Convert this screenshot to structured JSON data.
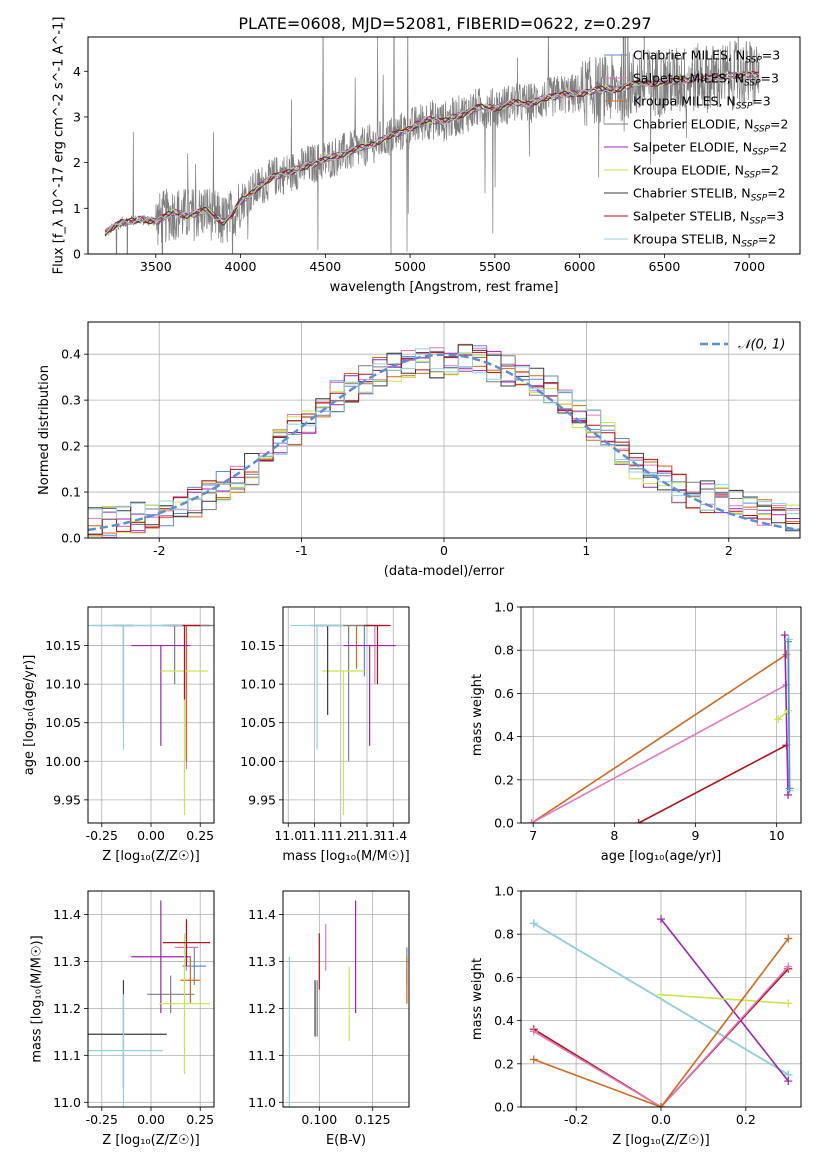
{
  "figure": {
    "title": "PLATE=0608, MJD=52081, FIBERID=0622, z=0.297"
  },
  "colors": {
    "Chabrier MILES": "#5b8fd4",
    "Salpeter MILES": "#e377c2",
    "Kroupa MILES": "#d2691e",
    "Chabrier ELODIE": "#7f7f7f",
    "Salpeter ELODIE": "#9c27b0",
    "Kroupa ELODIE": "#c6e84a",
    "Chabrier STELIB": "#3d3d3d",
    "Salpeter STELIB": "#b0141e",
    "Kroupa STELIB": "#8fd3dc",
    "gauss": "#5b8fd4"
  },
  "chart_data": [
    {
      "id": "spectrum",
      "type": "line",
      "xlabel": "wavelength [Angstrom, rest frame]",
      "ylabel": "Flux [f_λ 10^-17 erg cm^-2 s^-1 A^-1]",
      "xlim": [
        3100,
        7300
      ],
      "ylim": [
        0,
        4.75
      ],
      "xticks": [
        3500,
        4000,
        4500,
        5000,
        5500,
        6000,
        6500,
        7000
      ],
      "yticks": [
        0,
        1,
        2,
        3,
        4
      ],
      "grid": false,
      "legend_position": "top-right",
      "legend": [
        {
          "label": "Chabrier MILES, N",
          "sub": "SSP",
          "suffix": "=3",
          "color_key": "Chabrier MILES"
        },
        {
          "label": "Salpeter MILES, N",
          "sub": "SSP",
          "suffix": "=3",
          "color_key": "Salpeter MILES"
        },
        {
          "label": "Kroupa MILES, N",
          "sub": "SSP",
          "suffix": "=3",
          "color_key": "Kroupa MILES"
        },
        {
          "label": "Chabrier ELODIE, N",
          "sub": "SSP",
          "suffix": "=2",
          "color_key": "Chabrier ELODIE"
        },
        {
          "label": "Salpeter ELODIE, N",
          "sub": "SSP",
          "suffix": "=2",
          "color_key": "Salpeter ELODIE"
        },
        {
          "label": "Kroupa ELODIE, N",
          "sub": "SSP",
          "suffix": "=2",
          "color_key": "Kroupa ELODIE"
        },
        {
          "label": "Chabrier STELIB, N",
          "sub": "SSP",
          "suffix": "=2",
          "color_key": "Chabrier STELIB"
        },
        {
          "label": "Salpeter STELIB, N",
          "sub": "SSP",
          "suffix": "=3",
          "color_key": "Salpeter STELIB"
        },
        {
          "label": "Kroupa STELIB, N",
          "sub": "SSP",
          "suffix": "=2",
          "color_key": "Kroupa STELIB"
        }
      ],
      "data_continuum": {
        "x": [
          3200,
          3300,
          3400,
          3500,
          3600,
          3700,
          3800,
          3900,
          3950,
          4000,
          4100,
          4200,
          4300,
          4400,
          4500,
          4600,
          4700,
          4800,
          4900,
          5000,
          5100,
          5200,
          5300,
          5400,
          5500,
          5600,
          5700,
          5800,
          5900,
          6000,
          6100,
          6200,
          6300,
          6400,
          6500,
          6600,
          6700,
          6800,
          6900,
          7000,
          7050
        ],
        "y": [
          0.45,
          0.7,
          0.75,
          0.72,
          0.9,
          0.85,
          0.95,
          0.7,
          0.85,
          1.15,
          1.45,
          1.7,
          1.8,
          1.95,
          2.05,
          2.2,
          2.3,
          2.45,
          2.6,
          2.75,
          2.95,
          2.9,
          3.05,
          3.2,
          3.2,
          3.3,
          3.3,
          3.4,
          3.5,
          3.5,
          3.6,
          3.6,
          3.7,
          3.75,
          3.75,
          3.8,
          3.85,
          3.85,
          3.9,
          3.95,
          3.9
        ]
      }
    },
    {
      "id": "residuals",
      "type": "line",
      "xlabel": "(data-model)/error",
      "ylabel": "Normed distribution",
      "xlim": [
        -2.5,
        2.5
      ],
      "ylim": [
        0,
        0.47
      ],
      "xticks": [
        -2,
        -1,
        0,
        1,
        2
      ],
      "yticks": [
        0.0,
        0.1,
        0.2,
        0.3,
        0.4
      ],
      "grid": true,
      "legend_position": "top-right",
      "gauss_legend": "𝒩(0, 1)",
      "hist_envelope": {
        "x": [
          -2.5,
          -2.2,
          -1.9,
          -1.6,
          -1.3,
          -1.0,
          -0.7,
          -0.4,
          -0.1,
          0.2,
          0.5,
          0.8,
          1.1,
          1.4,
          1.7,
          2.0,
          2.3,
          2.5
        ],
        "y": [
          0.03,
          0.04,
          0.06,
          0.1,
          0.16,
          0.25,
          0.32,
          0.37,
          0.38,
          0.39,
          0.36,
          0.32,
          0.23,
          0.15,
          0.1,
          0.08,
          0.05,
          0.04
        ]
      }
    },
    {
      "id": "age-vs-Z",
      "type": "scatter",
      "xlabel": "Z [log₁₀(Z/Z☉)]",
      "ylabel": "age  [log₁₀(age/yr)]",
      "xlim": [
        -0.32,
        0.32
      ],
      "ylim": [
        9.92,
        10.2
      ],
      "xticks": [
        "-0.25",
        "0.00",
        "0.25"
      ],
      "xtick_values": [
        -0.25,
        0.0,
        0.25
      ],
      "yticks": [
        "9.95",
        "10.00",
        "10.05",
        "10.10",
        "10.15"
      ],
      "ytick_values": [
        9.95,
        10.0,
        10.05,
        10.1,
        10.15
      ],
      "grid": true,
      "points": [
        {
          "key": "Chabrier MILES",
          "x": 0.18,
          "y": 10.176,
          "xerr": 0.12,
          "ylo": 10.0
        },
        {
          "key": "Salpeter MILES",
          "x": 0.18,
          "y": 10.176,
          "xerr": 0.12,
          "ylo": 9.99
        },
        {
          "key": "Kroupa MILES",
          "x": 0.18,
          "y": 10.176,
          "xerr": 0.12,
          "ylo": 10.0
        },
        {
          "key": "Chabrier ELODIE",
          "x": 0.12,
          "y": 10.176,
          "xerr": 0.42,
          "ylo": 10.1
        },
        {
          "key": "Salpeter ELODIE",
          "x": 0.05,
          "y": 10.15,
          "xerr": 0.15,
          "ylo": 10.02
        },
        {
          "key": "Kroupa ELODIE",
          "x": 0.17,
          "y": 10.117,
          "xerr": 0.12,
          "ylo": 9.93
        },
        {
          "key": "Chabrier STELIB",
          "x": -0.14,
          "y": 10.176,
          "xerr": 0.05,
          "ylo": 10.05
        },
        {
          "key": "Salpeter STELIB",
          "x": 0.17,
          "y": 10.176,
          "xerr": 0.08,
          "ylo": 10.08
        },
        {
          "key": "Kroupa STELIB",
          "x": -0.14,
          "y": 10.176,
          "xerr": 0.3,
          "ylo": 10.015
        }
      ]
    },
    {
      "id": "age-vs-mass",
      "type": "scatter",
      "xlabel": "mass [log₁₀(M/M☉)]",
      "ylabel": "",
      "xlim": [
        10.98,
        11.46
      ],
      "ylim": [
        9.92,
        10.2
      ],
      "xticks": [
        "11.0",
        "11.1",
        "11.2",
        "11.3",
        "11.4"
      ],
      "xtick_values": [
        11.0,
        11.1,
        11.2,
        11.3,
        11.4
      ],
      "yticks": [
        "9.95",
        "10.00",
        "10.05",
        "10.10",
        "10.15"
      ],
      "ytick_values": [
        9.95,
        10.0,
        10.05,
        10.1,
        10.15
      ],
      "grid": true,
      "points": [
        {
          "key": "Chabrier MILES",
          "x": 11.29,
          "y": 10.176,
          "xerr": 0.03,
          "ylo": 10.11
        },
        {
          "key": "Salpeter MILES",
          "x": 11.33,
          "y": 10.176,
          "xerr": 0.03,
          "ylo": 10.1
        },
        {
          "key": "Kroupa MILES",
          "x": 11.26,
          "y": 10.176,
          "xerr": 0.05,
          "ylo": 10.12
        },
        {
          "key": "Chabrier ELODIE",
          "x": 11.23,
          "y": 10.176,
          "xerr": 0.15,
          "ylo": 10.0
        },
        {
          "key": "Salpeter ELODIE",
          "x": 11.31,
          "y": 10.15,
          "xerr": 0.1,
          "ylo": 10.02
        },
        {
          "key": "Kroupa ELODIE",
          "x": 11.21,
          "y": 10.117,
          "xerr": 0.08,
          "ylo": 9.93
        },
        {
          "key": "Chabrier STELIB",
          "x": 11.15,
          "y": 10.176,
          "xerr": 0.05,
          "ylo": 10.06
        },
        {
          "key": "Salpeter STELIB",
          "x": 11.34,
          "y": 10.176,
          "xerr": 0.05,
          "ylo": 10.1
        },
        {
          "key": "Kroupa STELIB",
          "x": 11.11,
          "y": 10.176,
          "xerr": 0.1,
          "ylo": 10.015
        }
      ]
    },
    {
      "id": "weight-vs-age",
      "type": "line",
      "xlabel": "age  [log₁₀(age/yr)]",
      "ylabel": "mass weight",
      "xlim": [
        6.85,
        10.3
      ],
      "ylim": [
        0,
        1.0
      ],
      "xticks": [
        "7",
        "8",
        "9",
        "10"
      ],
      "xtick_values": [
        7,
        8,
        9,
        10
      ],
      "yticks": [
        "0.0",
        "0.2",
        "0.4",
        "0.6",
        "0.8",
        "1.0"
      ],
      "ytick_values": [
        0,
        0.2,
        0.4,
        0.6,
        0.8,
        1.0
      ],
      "grid": true,
      "series": [
        {
          "key": "Kroupa MILES",
          "x": [
            6.98,
            10.12
          ],
          "y": [
            0.0,
            0.78
          ]
        },
        {
          "key": "Salpeter MILES",
          "x": [
            6.98,
            10.12
          ],
          "y": [
            0.0,
            0.64
          ]
        },
        {
          "key": "Salpeter STELIB",
          "x": [
            8.3,
            10.12
          ],
          "y": [
            0.0,
            0.36
          ]
        },
        {
          "key": "Salpeter ELODIE",
          "x": [
            10.1,
            10.14
          ],
          "y": [
            0.87,
            0.13
          ]
        },
        {
          "key": "Kroupa ELODIE",
          "x": [
            10.02,
            10.14
          ],
          "y": [
            0.48,
            0.52
          ]
        },
        {
          "key": "Kroupa STELIB",
          "x": [
            10.15,
            10.16
          ],
          "y": [
            0.85,
            0.15
          ]
        },
        {
          "key": "Chabrier MILES",
          "x": [
            10.14,
            10.16
          ],
          "y": [
            0.84,
            0.16
          ]
        }
      ]
    },
    {
      "id": "mass-vs-Z",
      "type": "scatter",
      "xlabel": "Z [log₁₀(Z/Z☉)]",
      "ylabel": "mass [log₁₀(M/M☉)]",
      "xlim": [
        -0.32,
        0.32
      ],
      "ylim": [
        10.99,
        11.45
      ],
      "xticks": [
        "-0.25",
        "0.00",
        "0.25"
      ],
      "xtick_values": [
        -0.25,
        0.0,
        0.25
      ],
      "yticks": [
        "11.0",
        "11.1",
        "11.2",
        "11.3",
        "11.4"
      ],
      "ytick_values": [
        11.0,
        11.1,
        11.2,
        11.3,
        11.4
      ],
      "grid": true,
      "points": [
        {
          "key": "Chabrier MILES",
          "x": 0.22,
          "y": 11.29,
          "xerr": 0.06,
          "yerr": 0.04
        },
        {
          "key": "Salpeter MILES",
          "x": 0.18,
          "y": 11.33,
          "xerr": 0.06,
          "yerr": 0.05
        },
        {
          "key": "Kroupa MILES",
          "x": 0.2,
          "y": 11.26,
          "xerr": 0.05,
          "yerr": 0.05
        },
        {
          "key": "Chabrier ELODIE",
          "x": 0.1,
          "y": 11.23,
          "xerr": 0.12,
          "yerr": 0.04
        },
        {
          "key": "Salpeter ELODIE",
          "x": 0.05,
          "y": 11.31,
          "xerr": 0.15,
          "yerr": 0.12
        },
        {
          "key": "Kroupa ELODIE",
          "x": 0.17,
          "y": 11.21,
          "xerr": 0.13,
          "yerr": 0.15
        },
        {
          "key": "Chabrier STELIB",
          "x": -0.14,
          "y": 11.145,
          "xerr": 0.22,
          "yerr": 0.115
        },
        {
          "key": "Salpeter STELIB",
          "x": 0.18,
          "y": 11.34,
          "xerr": 0.12,
          "yerr": 0.05
        },
        {
          "key": "Kroupa STELIB",
          "x": -0.14,
          "y": 11.11,
          "xerr": 0.2,
          "yerr": 0.12
        }
      ]
    },
    {
      "id": "mass-vs-ebv",
      "type": "scatter",
      "xlabel": "E(B-V)",
      "ylabel": "",
      "xlim": [
        0.083,
        0.142
      ],
      "ylim": [
        10.99,
        11.45
      ],
      "xticks": [
        "0.100",
        "0.125"
      ],
      "xtick_values": [
        0.1,
        0.125
      ],
      "yticks": [
        "11.0",
        "11.1",
        "11.2",
        "11.3",
        "11.4"
      ],
      "ytick_values": [
        11.0,
        11.1,
        11.2,
        11.3,
        11.4
      ],
      "grid": true,
      "points": [
        {
          "key": "Chabrier MILES",
          "x": 0.141,
          "y": 11.29,
          "yerr": 0.04
        },
        {
          "key": "Salpeter MILES",
          "x": 0.103,
          "y": 11.33,
          "yerr": 0.05
        },
        {
          "key": "Kroupa MILES",
          "x": 0.141,
          "y": 11.26,
          "yerr": 0.05
        },
        {
          "key": "Chabrier ELODIE",
          "x": 0.099,
          "y": 11.2,
          "yerr": 0.06
        },
        {
          "key": "Salpeter ELODIE",
          "x": 0.117,
          "y": 11.31,
          "yerr": 0.12
        },
        {
          "key": "Kroupa ELODIE",
          "x": 0.114,
          "y": 11.21,
          "yerr": 0.08
        },
        {
          "key": "Chabrier STELIB",
          "x": 0.098,
          "y": 11.2,
          "yerr": 0.06
        },
        {
          "key": "Salpeter STELIB",
          "x": 0.1,
          "y": 11.3,
          "yerr": 0.06
        },
        {
          "key": "Kroupa STELIB",
          "x": 0.086,
          "y": 11.15,
          "yerr": 0.16
        }
      ]
    },
    {
      "id": "weight-vs-Z",
      "type": "line",
      "xlabel": "Z [log₁₀(Z/Z☉)]",
      "ylabel": "mass weight",
      "xlim": [
        -0.33,
        0.33
      ],
      "ylim": [
        0,
        1.0
      ],
      "xticks": [
        "-0.2",
        "0.0",
        "0.2"
      ],
      "xtick_values": [
        -0.2,
        0.0,
        0.2
      ],
      "yticks": [
        "0.0",
        "0.2",
        "0.4",
        "0.6",
        "0.8",
        "1.0"
      ],
      "ytick_values": [
        0,
        0.2,
        0.4,
        0.6,
        0.8,
        1.0
      ],
      "grid": true,
      "series": [
        {
          "key": "Chabrier MILES",
          "x": [
            -0.3,
            0.3
          ],
          "y": [
            0.85,
            0.15
          ]
        },
        {
          "key": "Kroupa STELIB",
          "x": [
            -0.3,
            0.3
          ],
          "y": [
            0.85,
            0.15
          ]
        },
        {
          "key": "Salpeter ELODIE",
          "x": [
            0.0,
            0.3
          ],
          "y": [
            0.87,
            0.12
          ]
        },
        {
          "key": "Kroupa ELODIE",
          "x": [
            0.0,
            0.3
          ],
          "y": [
            0.52,
            0.48
          ]
        },
        {
          "key": "Salpeter STELIB",
          "x": [
            -0.3,
            0.0,
            0.3
          ],
          "y": [
            0.36,
            0.0,
            0.64
          ]
        },
        {
          "key": "Salpeter MILES",
          "x": [
            -0.3,
            0.0,
            0.3
          ],
          "y": [
            0.35,
            0.0,
            0.65
          ]
        },
        {
          "key": "Kroupa MILES",
          "x": [
            -0.3,
            0.0,
            0.3
          ],
          "y": [
            0.22,
            0.0,
            0.78
          ]
        }
      ]
    }
  ]
}
